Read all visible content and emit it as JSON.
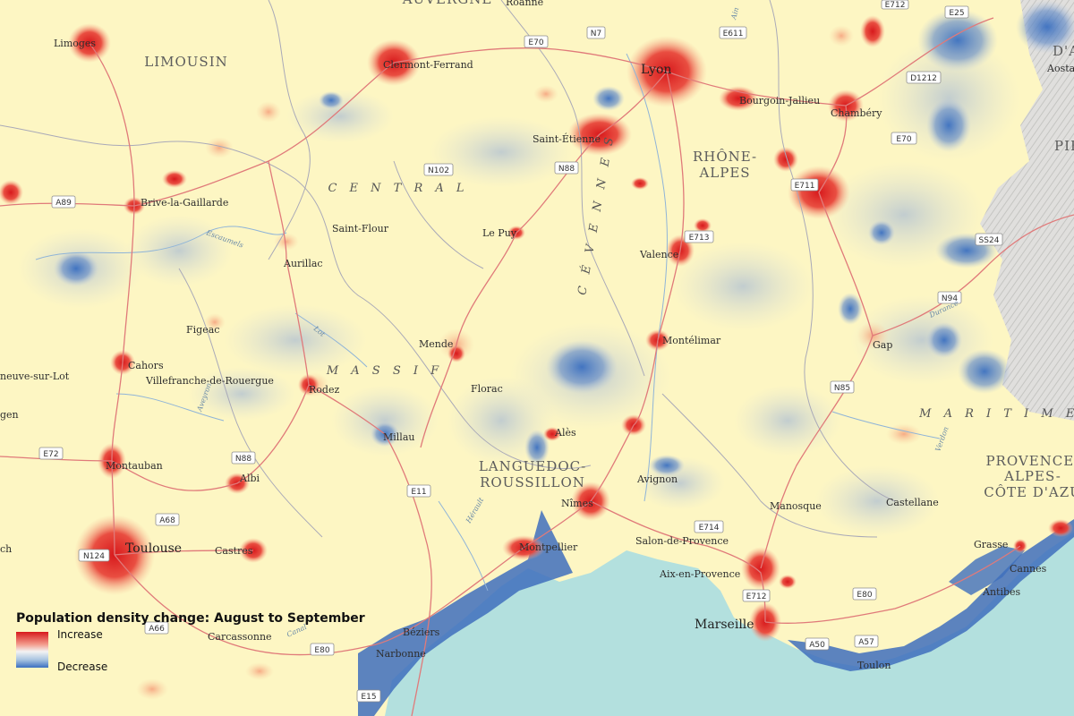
{
  "legend": {
    "title": "Population density change: August to September",
    "increase_label": "Increase",
    "decrease_label": "Decrease",
    "increase_color": "#d7191c",
    "decrease_color": "#3a6fc0"
  },
  "colors": {
    "land": "#fdf6c3",
    "sea": "#b3e0de",
    "mountains": "#d6d6d6",
    "road": "#e07a7a",
    "boundary": "#a9a9b8",
    "river": "#8fb4d8"
  },
  "regions": {
    "auvergne": "AUVERGNE",
    "limousin": "LIMOUSIN",
    "central": "C E N T R A L",
    "massif": "M A S S I F",
    "cevennes": "C É V E N N E S",
    "rhone_alpes_1": "RHÔNE-",
    "rhone_alpes_2": "ALPES",
    "languedoc_1": "LANGUEDOC-",
    "languedoc_2": "ROUSSILLON",
    "maritime": "M A R I T I M E  A",
    "provence_1": "PROVENCE-",
    "provence_2": "ALPES-",
    "provence_3": "CÔTE D'AZU",
    "piemonte": "PIE",
    "aosta": "Aosta",
    "valle": "D'A"
  },
  "cities": {
    "roanne": "Roanne",
    "limoges": "Limoges",
    "clermont_ferrand": "Clermont-Ferrand",
    "lyon": "Lyon",
    "bourgoin_jallieu": "Bourgoin-Jallieu",
    "chambery": "Chambéry",
    "saint_etienne": "Saint-Étienne",
    "brive": "Brive-la-Gaillarde",
    "saint_flour": "Saint-Flour",
    "le_puy": "Le Puy",
    "aurillac": "Aurillac",
    "valence": "Valence",
    "figeac": "Figeac",
    "mende": "Mende",
    "montelimar": "Montélimar",
    "gap": "Gap",
    "cahors": "Cahors",
    "villeneuve": "neuve-sur-Lot",
    "villefranche": "Villefranche-de-Rouergue",
    "rodez": "Rodez",
    "florac": "Florac",
    "agen": "gen",
    "millau": "Millau",
    "ales": "Alès",
    "montauban": "Montauban",
    "albi": "Albi",
    "avignon": "Avignon",
    "nimes": "Nîmes",
    "manosque": "Manosque",
    "castellane": "Castellane",
    "toulouse": "Toulouse",
    "castres": "Castres",
    "montpellier": "Montpellier",
    "salon": "Salon-de-Provence",
    "grasse": "Grasse",
    "cannes": "Cannes",
    "aix": "Aix-en-Provence",
    "antibes": "Antibes",
    "beziers": "Béziers",
    "marseille": "Marseille",
    "carcassonne": "Carcassonne",
    "narbonne": "Narbonne",
    "toulon": "Toulon",
    "auch": "ch"
  },
  "roads": {
    "e70a": "E70",
    "n7": "N7",
    "e611": "E611",
    "e712a": "E712",
    "e25": "E25",
    "d1212": "D1212",
    "e70b": "E70",
    "n102": "N102",
    "n88a": "N88",
    "a89": "A89",
    "e711": "E711",
    "e713": "E713",
    "ss24": "SS24",
    "n94": "N94",
    "n85": "N85",
    "e72": "E72",
    "n88b": "N88",
    "e11": "E11",
    "a68": "A68",
    "e714": "E714",
    "n124": "N124",
    "e80a": "E80",
    "e712b": "E712",
    "a66": "A66",
    "a50": "A50",
    "a57": "A57",
    "e80b": "E80",
    "e15": "E15"
  },
  "rivers": {
    "lot": "Lot",
    "aveyron": "Aveyron",
    "herault": "Hérault",
    "verdon": "Verdon",
    "durance": "Durance",
    "ain": "Ain",
    "canal": "Canal",
    "escaumels": "Escaumels"
  }
}
